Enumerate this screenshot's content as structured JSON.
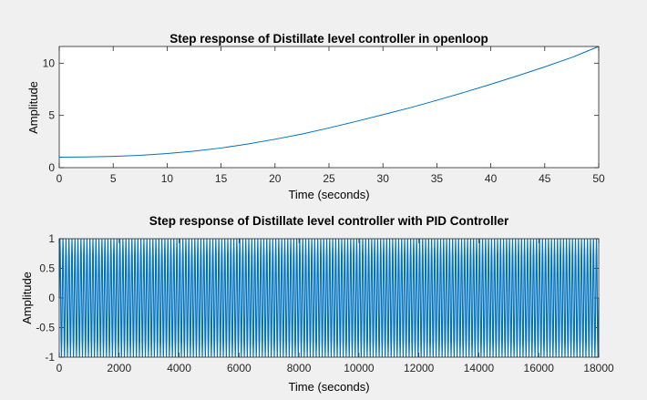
{
  "colors": {
    "figure_bg": "#f0f0f0",
    "axes_bg": "#ffffff",
    "axis": "#262626",
    "line": "#0072bd"
  },
  "chart_data": [
    {
      "type": "line",
      "title": "Step response of Distillate level controller in openloop",
      "xlabel": "Time (seconds)",
      "ylabel": "Amplitude",
      "xlim": [
        0,
        50
      ],
      "ylim": [
        0,
        11.6
      ],
      "xticks": [
        0,
        5,
        10,
        15,
        20,
        25,
        30,
        35,
        40,
        45,
        50
      ],
      "yticks": [
        0,
        5,
        10
      ],
      "grid": false,
      "series": [
        {
          "x": [
            0,
            2.5,
            5,
            7.5,
            10,
            12.5,
            15,
            17.5,
            20,
            22.5,
            25,
            27.5,
            30,
            32.5,
            35,
            37.5,
            40,
            42.5,
            45,
            47.5,
            50
          ],
          "y": [
            1.0,
            1.02,
            1.08,
            1.18,
            1.35,
            1.58,
            1.88,
            2.27,
            2.72,
            3.22,
            3.8,
            4.42,
            5.07,
            5.73,
            6.45,
            7.2,
            7.98,
            8.8,
            9.65,
            10.55,
            11.6
          ]
        }
      ]
    },
    {
      "type": "line",
      "title": "Step response of Distillate level controller with PID Controller",
      "xlabel": "Time (seconds)",
      "ylabel": "Amplitude",
      "xlim": [
        0,
        18000
      ],
      "ylim": [
        -1,
        1
      ],
      "xticks": [
        0,
        2000,
        4000,
        6000,
        8000,
        10000,
        12000,
        14000,
        16000,
        18000
      ],
      "yticks": [
        -1,
        -0.5,
        0,
        0.5,
        1
      ],
      "grid": false,
      "series": [
        {
          "waveform": "sine",
          "amplitude": 1.0,
          "offset": 0,
          "cycles_over_range": 180,
          "x_end": 18000
        }
      ]
    }
  ]
}
